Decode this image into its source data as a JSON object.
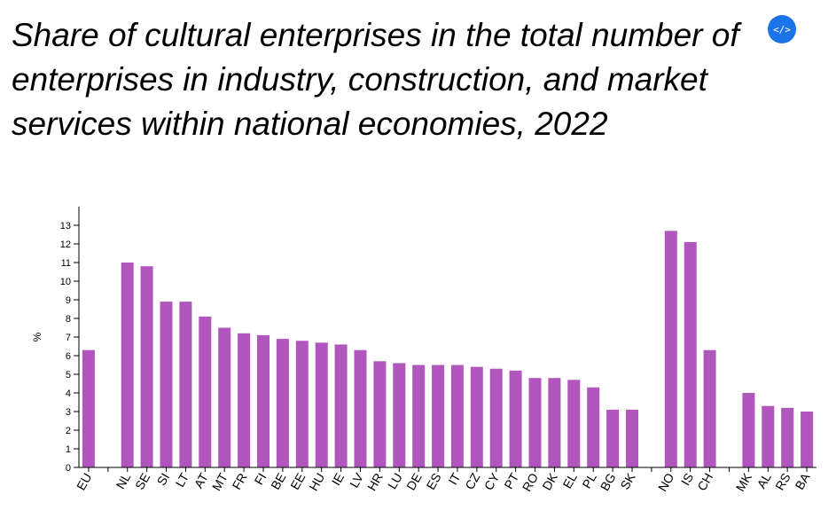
{
  "title": "Share of cultural enterprises in the total number of enterprises in industry, construction, and market services within national economies, 2022",
  "embed_button": {
    "icon": "code-icon",
    "glyph": "</>",
    "color": "#1a73e8"
  },
  "chart_data": {
    "type": "bar",
    "title": "Share of cultural enterprises in the total number of enterprises in industry, construction, and market services within national economies, 2022",
    "xlabel": "",
    "ylabel": "%",
    "ylim": [
      0,
      14
    ],
    "yticks": [
      0,
      1,
      2,
      3,
      4,
      5,
      6,
      7,
      8,
      9,
      10,
      11,
      12,
      13
    ],
    "grid": false,
    "bar_color": "#b156bd",
    "categories": [
      "EU",
      "",
      "NL",
      "SE",
      "SI",
      "LT",
      "AT",
      "MT",
      "FR",
      "FI",
      "BE",
      "EE",
      "HU",
      "IE",
      "LV",
      "HR",
      "LU",
      "DE",
      "ES",
      "IT",
      "CZ",
      "CY",
      "PT",
      "RO",
      "DK",
      "EL",
      "PL",
      "BG",
      "SK",
      "",
      "NO",
      "IS",
      "CH",
      "",
      "MK",
      "AL",
      "RS",
      "BA"
    ],
    "values": [
      6.3,
      null,
      11.0,
      10.8,
      8.9,
      8.9,
      8.1,
      7.5,
      7.2,
      7.1,
      6.9,
      6.8,
      6.7,
      6.6,
      6.3,
      5.7,
      5.6,
      5.5,
      5.5,
      5.5,
      5.4,
      5.3,
      5.2,
      4.8,
      4.8,
      4.7,
      4.3,
      3.1,
      3.1,
      null,
      12.7,
      12.1,
      6.3,
      null,
      4.0,
      3.3,
      3.2,
      3.0
    ]
  }
}
